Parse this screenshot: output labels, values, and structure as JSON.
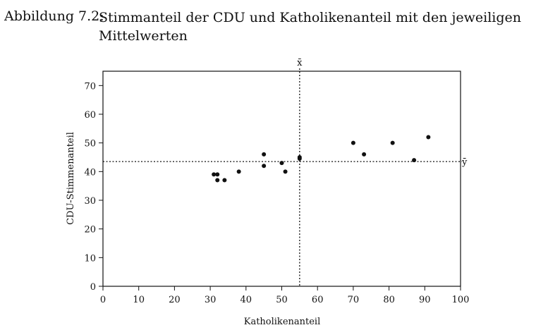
{
  "caption": {
    "label": "Abbildung 7.2:",
    "text": "Stimmanteil der CDU und Katholikenanteil mit den jeweiligen Mittelwerten"
  },
  "chart_data": {
    "type": "scatter",
    "xlabel": "Katholikenanteil",
    "ylabel": "CDU-Stimmenanteil",
    "xlim": [
      0,
      100
    ],
    "ylim": [
      0,
      75
    ],
    "xticks": [
      0,
      10,
      20,
      30,
      40,
      50,
      60,
      70,
      80,
      90,
      100
    ],
    "yticks": [
      0,
      10,
      20,
      30,
      40,
      50,
      60,
      70
    ],
    "grid": false,
    "points": [
      {
        "x": 31,
        "y": 39
      },
      {
        "x": 32,
        "y": 39
      },
      {
        "x": 32,
        "y": 37
      },
      {
        "x": 34,
        "y": 37
      },
      {
        "x": 38,
        "y": 40
      },
      {
        "x": 45,
        "y": 46
      },
      {
        "x": 45,
        "y": 42
      },
      {
        "x": 50,
        "y": 43
      },
      {
        "x": 51,
        "y": 40
      },
      {
        "x": 55,
        "y": 45
      },
      {
        "x": 55,
        "y": 44.5
      },
      {
        "x": 70,
        "y": 50
      },
      {
        "x": 73,
        "y": 46
      },
      {
        "x": 81,
        "y": 50
      },
      {
        "x": 87,
        "y": 44
      },
      {
        "x": 91,
        "y": 52
      }
    ],
    "mean_x": {
      "value": 55,
      "label": "x̄"
    },
    "mean_y": {
      "value": 43.5,
      "label": "ȳ"
    }
  }
}
